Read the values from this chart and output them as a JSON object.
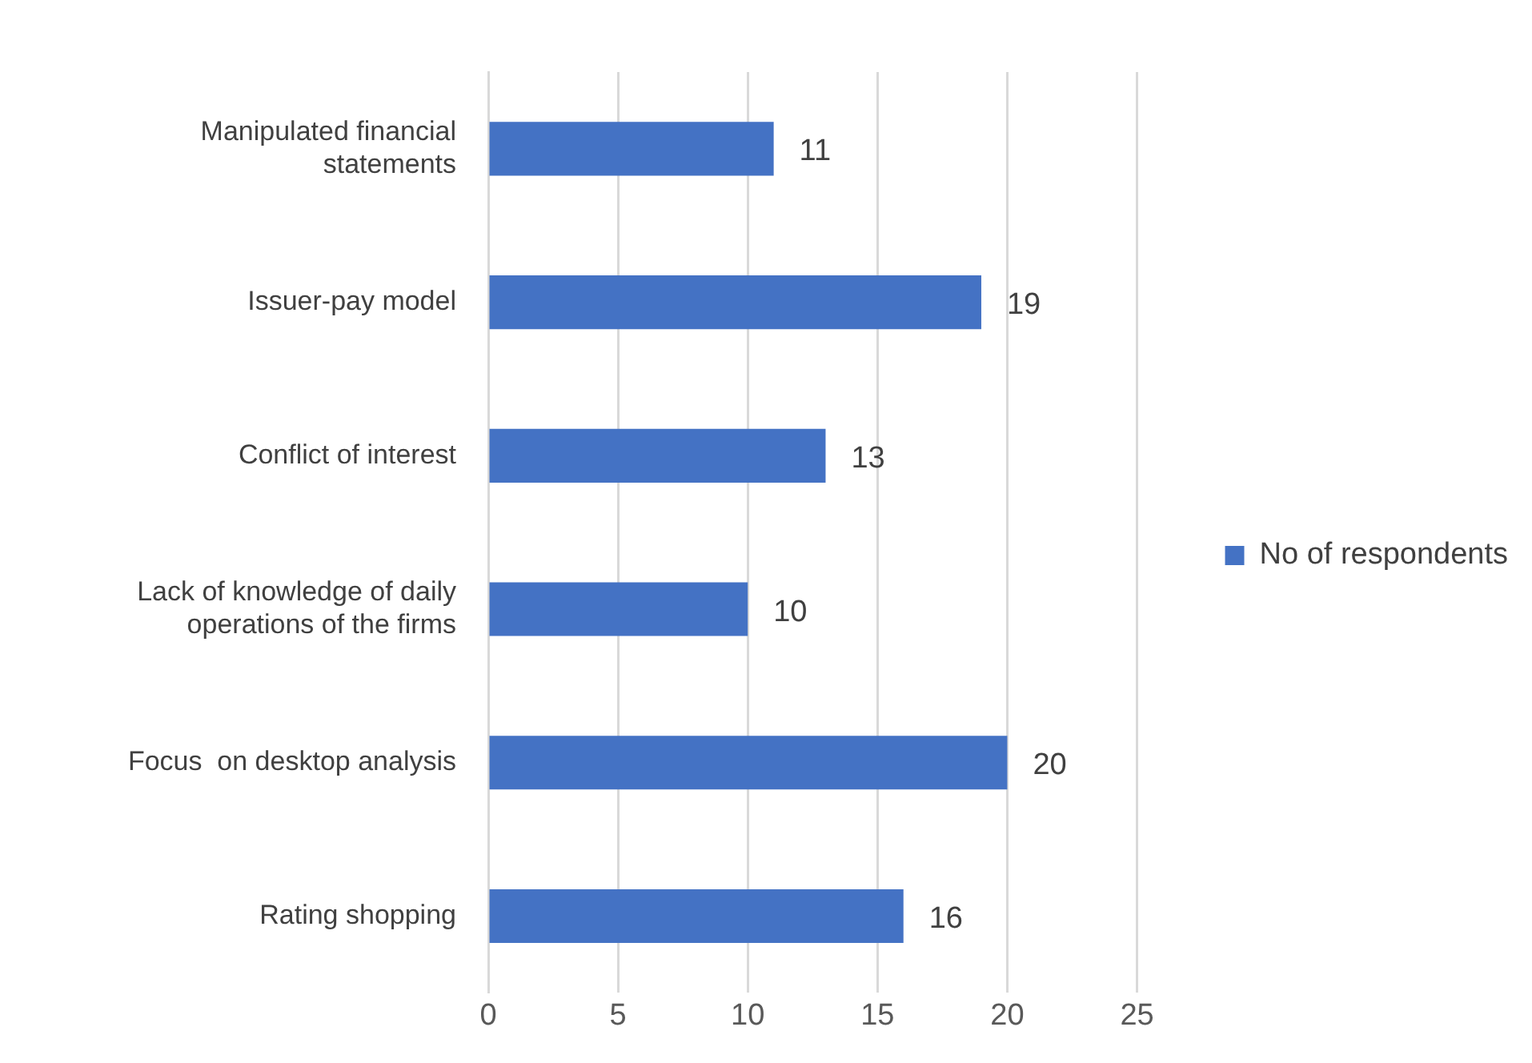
{
  "chart_data": {
    "type": "bar",
    "orientation": "horizontal",
    "categories": [
      "Manipulated financial statements",
      "Issuer-pay model",
      "Conflict of interest",
      "Lack of knowledge of daily operations of the firms",
      "Focus  on desktop analysis",
      "Rating shopping"
    ],
    "series": [
      {
        "name": "No of respondents",
        "color": "#4472c4",
        "values": [
          11,
          19,
          13,
          10,
          20,
          16
        ]
      }
    ],
    "xlim": [
      0,
      25
    ],
    "xticks": [
      0,
      5,
      10,
      15,
      20,
      25
    ],
    "grid": "x",
    "legend": "right",
    "data_labels": true
  }
}
